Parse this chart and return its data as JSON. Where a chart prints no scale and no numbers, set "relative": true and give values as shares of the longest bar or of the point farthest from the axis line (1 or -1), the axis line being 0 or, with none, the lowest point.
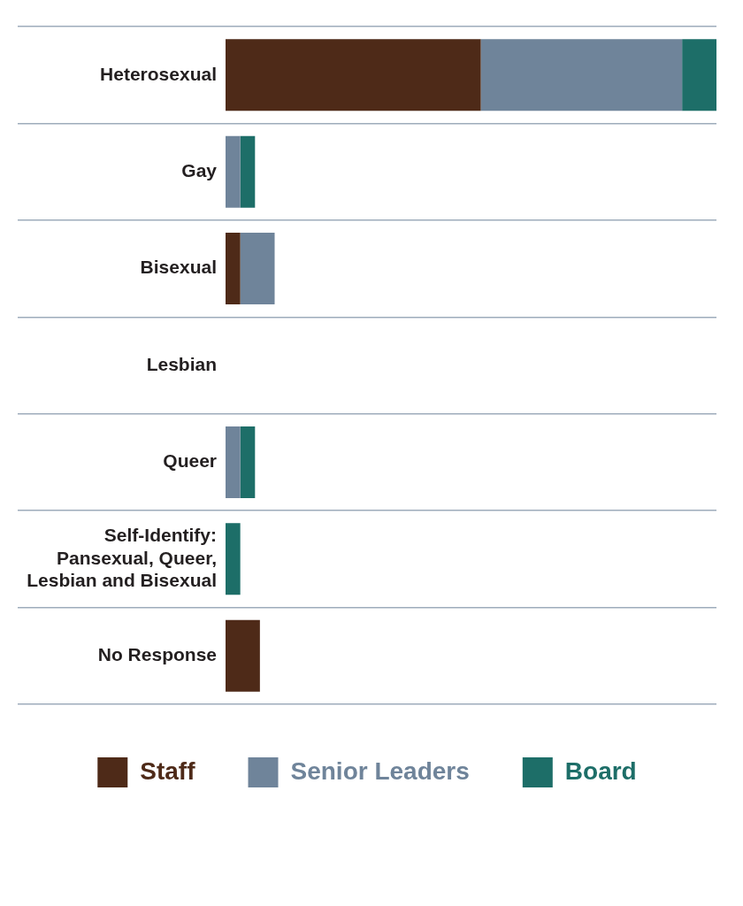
{
  "chart_data": {
    "type": "bar",
    "orientation": "horizontal",
    "stacked": true,
    "relative": true,
    "categories": [
      "Heterosexual",
      "Gay",
      "Bisexual",
      "Lesbian",
      "Queer",
      "Self-Identify: Pansexual, Queer, Lesbian and Bisexual",
      "No Response"
    ],
    "series": [
      {
        "name": "Staff",
        "color": "#4e2a18",
        "values": [
          0.52,
          0,
          0.03,
          0,
          0,
          0,
          0.07
        ]
      },
      {
        "name": "Senior Leaders",
        "color": "#6f849a",
        "values": [
          0.41,
          0.03,
          0.07,
          0,
          0.03,
          0,
          0
        ]
      },
      {
        "name": "Board",
        "color": "#1d6e68",
        "values": [
          0.07,
          0.03,
          0,
          0,
          0.03,
          0.03,
          0
        ]
      }
    ],
    "grid": "y",
    "legend": "bottom"
  }
}
